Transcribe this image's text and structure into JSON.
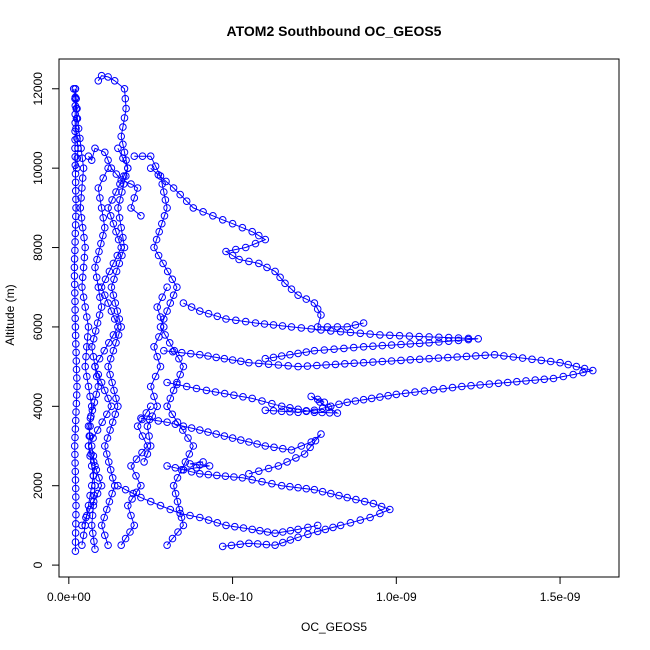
{
  "chart_data": {
    "type": "scatter",
    "title": "ATOM2 Southbound OC_GEOS5",
    "xlabel": "OC_GEOS5",
    "ylabel": "Altitude (m)",
    "xlim": [
      -3e-11,
      1.68e-09
    ],
    "ylim": [
      -300,
      12750
    ],
    "x_ticks": [
      {
        "value": 0,
        "label": "0.0e+00"
      },
      {
        "value": 5e-10,
        "label": "5.0e-10"
      },
      {
        "value": 1e-09,
        "label": "1.0e-09"
      },
      {
        "value": 1.5e-09,
        "label": "1.5e-09"
      }
    ],
    "y_ticks": [
      {
        "value": 0,
        "label": "0"
      },
      {
        "value": 2000,
        "label": "2000"
      },
      {
        "value": 4000,
        "label": "4000"
      },
      {
        "value": 6000,
        "label": "6000"
      },
      {
        "value": 8000,
        "label": "8000"
      },
      {
        "value": 10000,
        "label": "10000"
      },
      {
        "value": 12000,
        "label": "12000"
      }
    ],
    "marker": "open-circle",
    "color": "#0000ff",
    "grid": false,
    "legend": "none",
    "series": [
      {
        "points": [
          [
            2e-11,
            350
          ],
          [
            2.2e-11,
            1500
          ],
          [
            1.8e-11,
            3000
          ],
          [
            2.5e-11,
            4500
          ],
          [
            2e-11,
            6000
          ],
          [
            1.7e-11,
            7500
          ],
          [
            2.2e-11,
            9000
          ],
          [
            1.9e-11,
            10500
          ],
          [
            2e-11,
            12000
          ]
        ]
      },
      {
        "points": [
          [
            1.5e-11,
            12000
          ],
          [
            3e-11,
            11000
          ],
          [
            4.5e-11,
            10000
          ],
          [
            3.5e-11,
            9000
          ],
          [
            5e-11,
            8000
          ],
          [
            4e-11,
            7000
          ],
          [
            6e-11,
            6000
          ],
          [
            5e-11,
            5000
          ],
          [
            7e-11,
            4000
          ],
          [
            6e-11,
            3000
          ],
          [
            8e-11,
            2000
          ],
          [
            7e-11,
            1000
          ],
          [
            8e-11,
            400
          ]
        ]
      },
      {
        "points": [
          [
            4e-11,
            1000
          ],
          [
            1e-10,
            2000
          ],
          [
            6e-11,
            3000
          ],
          [
            1.3e-10,
            4000
          ],
          [
            8e-11,
            5000
          ],
          [
            1.5e-10,
            6000
          ],
          [
            1e-10,
            7000
          ],
          [
            1.6e-10,
            8000
          ],
          [
            1.2e-10,
            9000
          ],
          [
            1.8e-10,
            10000
          ],
          [
            1.5e-10,
            10500
          ]
        ]
      },
      {
        "points": [
          [
            9e-11,
            12200
          ],
          [
            1e-10,
            12330
          ],
          [
            1.2e-10,
            12300
          ],
          [
            1.4e-10,
            12200
          ],
          [
            1.7e-10,
            12000
          ],
          [
            1.75e-10,
            11500
          ],
          [
            1.6e-10,
            10800
          ],
          [
            1.8e-10,
            10000
          ],
          [
            1.5e-10,
            9000
          ],
          [
            1.7e-10,
            8000
          ],
          [
            1.3e-10,
            7000
          ],
          [
            1.6e-10,
            6000
          ],
          [
            1.2e-10,
            5000
          ],
          [
            1.5e-10,
            4000
          ],
          [
            1.1e-10,
            3000
          ],
          [
            1.4e-10,
            2000
          ],
          [
            1e-10,
            1000
          ],
          [
            1.2e-10,
            500
          ]
        ]
      },
      {
        "points": [
          [
            2e-10,
            10300
          ],
          [
            2.5e-10,
            10300
          ],
          [
            2.8e-10,
            9800
          ],
          [
            3e-10,
            9000
          ],
          [
            2.6e-10,
            8000
          ],
          [
            3.3e-10,
            7000
          ],
          [
            2.8e-10,
            6000
          ],
          [
            3.5e-10,
            5000
          ],
          [
            3e-10,
            4000
          ],
          [
            3.8e-10,
            3000
          ],
          [
            3.2e-10,
            2000
          ],
          [
            3.5e-10,
            1000
          ],
          [
            3e-10,
            500
          ]
        ]
      },
      {
        "points": [
          [
            2.5e-10,
            10000
          ],
          [
            3.2e-10,
            9500
          ],
          [
            3.8e-10,
            9000
          ],
          [
            4.4e-10,
            8800
          ],
          [
            5e-10,
            8600
          ],
          [
            5.6e-10,
            8400
          ],
          [
            6e-10,
            8200
          ],
          [
            5.4e-10,
            8000
          ],
          [
            4.8e-10,
            7900
          ],
          [
            5.2e-10,
            7700
          ],
          [
            5.8e-10,
            7600
          ],
          [
            6.3e-10,
            7400
          ],
          [
            6.6e-10,
            7100
          ],
          [
            7e-10,
            6800
          ],
          [
            7.5e-10,
            6600
          ],
          [
            7.7e-10,
            6300
          ],
          [
            7.6e-10,
            6000
          ],
          [
            8.5e-10,
            6000
          ],
          [
            9e-10,
            6100
          ]
        ]
      },
      {
        "points": [
          [
            3.5e-10,
            6600
          ],
          [
            4e-10,
            6400
          ],
          [
            4.8e-10,
            6200
          ],
          [
            5.7e-10,
            6100
          ],
          [
            6.8e-10,
            6000
          ],
          [
            8e-10,
            5900
          ],
          [
            9.5e-10,
            5800
          ],
          [
            1.1e-09,
            5750
          ],
          [
            1.25e-09,
            5700
          ],
          [
            1.1e-09,
            5600
          ],
          [
            9e-10,
            5500
          ],
          [
            7.5e-10,
            5400
          ],
          [
            6e-10,
            5200
          ]
        ]
      },
      {
        "points": [
          [
            2.9e-10,
            5400
          ],
          [
            4e-10,
            5300
          ],
          [
            5.5e-10,
            5100
          ],
          [
            7e-10,
            5000
          ],
          [
            9e-10,
            5100
          ],
          [
            1.1e-09,
            5200
          ],
          [
            1.3e-09,
            5300
          ],
          [
            1.5e-09,
            5100
          ],
          [
            1.6e-09,
            4900
          ],
          [
            1.48e-09,
            4700
          ],
          [
            1.2e-09,
            4500
          ],
          [
            1e-09,
            4300
          ],
          [
            8.5e-10,
            4100
          ],
          [
            7.5e-10,
            3900
          ],
          [
            7e-10,
            3850
          ],
          [
            6e-10,
            3900
          ]
        ]
      },
      {
        "points": [
          [
            3e-10,
            4600
          ],
          [
            4.2e-10,
            4400
          ],
          [
            5.6e-10,
            4200
          ],
          [
            6.5e-10,
            4000
          ],
          [
            7.5e-10,
            3850
          ],
          [
            8.2e-10,
            3830
          ],
          [
            7.4e-10,
            4250
          ],
          [
            7.8e-10,
            4100
          ]
        ]
      },
      {
        "points": [
          [
            2.2e-10,
            3700
          ],
          [
            3e-10,
            3600
          ],
          [
            4e-10,
            3400
          ],
          [
            5e-10,
            3200
          ],
          [
            6e-10,
            3000
          ],
          [
            6.8e-10,
            2900
          ],
          [
            7.4e-10,
            3100
          ],
          [
            7.7e-10,
            3300
          ],
          [
            7.2e-10,
            2800
          ],
          [
            6.4e-10,
            2500
          ],
          [
            5.5e-10,
            2300
          ]
        ]
      },
      {
        "points": [
          [
            3e-10,
            2500
          ],
          [
            4e-10,
            2300
          ],
          [
            5.3e-10,
            2200
          ],
          [
            6.5e-10,
            2000
          ],
          [
            7.5e-10,
            1900
          ],
          [
            8.5e-10,
            1700
          ],
          [
            9.3e-10,
            1550
          ],
          [
            9.8e-10,
            1400
          ],
          [
            9.2e-10,
            1200
          ],
          [
            8.3e-10,
            1000
          ],
          [
            7.6e-10,
            850
          ],
          [
            7e-10,
            700
          ],
          [
            6.3e-10,
            500
          ],
          [
            5.5e-10,
            550
          ],
          [
            4.7e-10,
            470
          ]
        ]
      },
      {
        "points": [
          [
            1.5e-10,
            2000
          ],
          [
            2.2e-10,
            1700
          ],
          [
            2.8e-10,
            1500
          ],
          [
            3.4e-10,
            1300
          ],
          [
            4e-10,
            1200
          ],
          [
            4.8e-10,
            1000
          ],
          [
            5.6e-10,
            900
          ],
          [
            6.3e-10,
            800
          ],
          [
            7e-10,
            900
          ],
          [
            7.6e-10,
            1000
          ]
        ]
      },
      {
        "points": [
          [
            4e-11,
            500
          ],
          [
            6e-11,
            1500
          ],
          [
            8e-11,
            2500
          ],
          [
            6e-11,
            3500
          ],
          [
            9e-11,
            4500
          ],
          [
            7e-11,
            5500
          ],
          [
            1e-10,
            6500
          ],
          [
            8e-11,
            7500
          ],
          [
            1.1e-10,
            8500
          ],
          [
            9e-11,
            9500
          ],
          [
            1.2e-10,
            10000
          ]
        ]
      },
      {
        "points": [
          [
            2.3e-10,
            2600
          ],
          [
            2.5e-10,
            3000
          ],
          [
            2.4e-10,
            3500
          ],
          [
            2.7e-10,
            4000
          ],
          [
            2.5e-10,
            4500
          ],
          [
            2.8e-10,
            5000
          ],
          [
            2.6e-10,
            5500
          ],
          [
            2.9e-10,
            6000
          ],
          [
            2.7e-10,
            6500
          ],
          [
            3e-10,
            7000
          ]
        ]
      },
      {
        "points": [
          [
            1.6e-10,
            500
          ],
          [
            2e-10,
            1000
          ],
          [
            1.8e-10,
            1500
          ],
          [
            2.2e-10,
            2000
          ],
          [
            1.9e-10,
            2500
          ],
          [
            2.4e-10,
            3000
          ],
          [
            2.1e-10,
            3500
          ],
          [
            2.5e-10,
            4000
          ]
        ]
      },
      {
        "points": [
          [
            3.5e-10,
            2400
          ],
          [
            3.9e-10,
            2450
          ],
          [
            4.3e-10,
            2500
          ],
          [
            3.7e-10,
            2550
          ],
          [
            4.1e-10,
            2600
          ]
        ]
      },
      {
        "points": [
          [
            2e-11,
            12000
          ],
          [
            2.5e-11,
            11500
          ],
          [
            2.2e-11,
            11000
          ],
          [
            2.8e-11,
            10500
          ],
          [
            2.4e-11,
            10000
          ]
        ]
      },
      {
        "points": [
          [
            6e-11,
            10300
          ],
          [
            7e-11,
            10200
          ],
          [
            8e-11,
            10500
          ],
          [
            1.1e-10,
            10400
          ],
          [
            1.3e-10,
            10000
          ],
          [
            1.6e-10,
            9700
          ],
          [
            1.9e-10,
            9600
          ],
          [
            2.1e-10,
            9500
          ],
          [
            1.9e-10,
            9000
          ],
          [
            2.2e-10,
            8800
          ]
        ]
      }
    ]
  }
}
